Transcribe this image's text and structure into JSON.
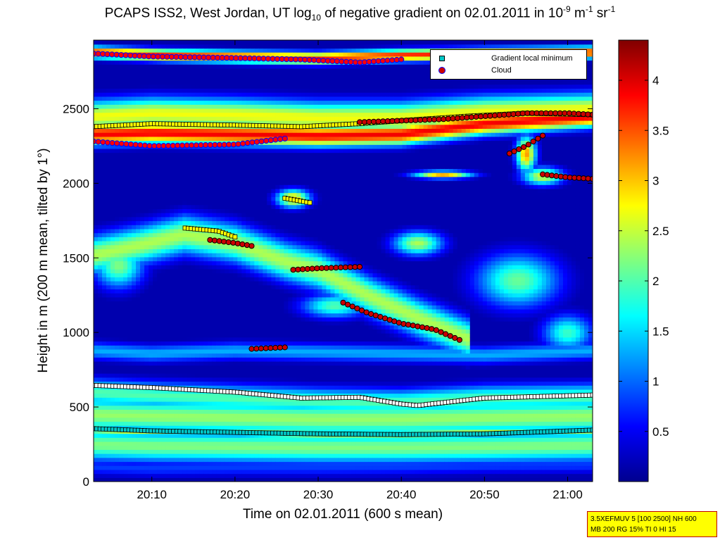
{
  "chart_data": {
    "type": "heatmap",
    "title": {
      "main": "PCAPS ISS2, West Jordan, UT log",
      "sub10": "10",
      "mid": " of negative gradient on 02.01.2011 in 10",
      "exp1": "-9",
      "unit1": " m",
      "exp2": "-1",
      "unit2": " sr",
      "exp3": "-1"
    },
    "xlabel": "Time on 02.01.2011 (600 s mean)",
    "ylabel": "Height in m (200 m mean, tilted by 1°)",
    "xlim_min": [
      3,
      63
    ],
    "x_ticks": [
      {
        "v": 10,
        "label": "20:10"
      },
      {
        "v": 20,
        "label": "20:20"
      },
      {
        "v": 30,
        "label": "20:30"
      },
      {
        "v": 40,
        "label": "20:40"
      },
      {
        "v": 50,
        "label": "20:50"
      },
      {
        "v": 60,
        "label": "21:00"
      }
    ],
    "ylim": [
      0,
      2960
    ],
    "y_ticks": [
      0,
      500,
      1000,
      1500,
      2000,
      2500
    ],
    "colorbar": {
      "range": [
        0,
        4.4
      ],
      "ticks": [
        0.5,
        1,
        1.5,
        2,
        2.5,
        3,
        3.5,
        4
      ],
      "tick_labels": [
        "0.5",
        "1",
        "1.5",
        "2",
        "2.5",
        "3",
        "3.5",
        "4"
      ]
    },
    "legend": {
      "placement": "top-right",
      "items": [
        {
          "label": "Gradient local minimum",
          "color": "#00c8c8"
        },
        {
          "label": "Cloud",
          "color": "#cc0000"
        }
      ]
    },
    "background_value": 0.15,
    "layers": [
      {
        "t": [
          3,
          10,
          20,
          30,
          40,
          50,
          63
        ],
        "h": [
          100,
          90,
          95,
          95,
          100,
          110,
          115
        ],
        "w": 60,
        "v": 0.8
      },
      {
        "t": [
          3,
          10,
          20,
          30,
          40,
          50,
          63
        ],
        "h": [
          250,
          240,
          235,
          230,
          230,
          235,
          245
        ],
        "w": 110,
        "v": 2.2
      },
      {
        "t": [
          3,
          10,
          20,
          30,
          40,
          50,
          63
        ],
        "h": [
          350,
          335,
          330,
          320,
          320,
          330,
          345
        ],
        "w": 25,
        "v": 2.6
      },
      {
        "t": [
          3,
          10,
          20,
          30,
          40,
          50,
          63
        ],
        "h": [
          450,
          440,
          430,
          420,
          420,
          430,
          440
        ],
        "w": 120,
        "v": 2.3
      },
      {
        "t": [
          3,
          10,
          20,
          30,
          40,
          50,
          63
        ],
        "h": [
          600,
          580,
          560,
          540,
          530,
          560,
          570
        ],
        "w": 90,
        "v": 2.0
      },
      {
        "t": [
          3,
          8,
          14,
          20,
          26,
          30,
          36,
          42,
          48
        ],
        "h": [
          1520,
          1580,
          1660,
          1600,
          1480,
          1420,
          1250,
          1100,
          960
        ],
        "w": 130,
        "v": 2.4
      },
      {
        "t": [
          3,
          10,
          20,
          30,
          40,
          50,
          63
        ],
        "h": [
          880,
          860,
          880,
          870,
          860,
          850,
          880
        ],
        "w": 60,
        "v": 1.3
      },
      {
        "t": [
          3,
          10,
          20,
          30,
          40,
          50,
          63
        ],
        "h": [
          2330,
          2340,
          2330,
          2320,
          2330,
          2400,
          2450
        ],
        "w": 70,
        "v": 3.9
      },
      {
        "t": [
          3,
          10,
          20,
          30,
          40,
          50,
          63
        ],
        "h": [
          2450,
          2470,
          2460,
          2440,
          2440,
          2480,
          2500
        ],
        "w": 110,
        "v": 2.7
      },
      {
        "t": [
          3,
          12,
          20,
          30,
          40,
          50,
          63
        ],
        "h": [
          2880,
          2860,
          2850,
          2840,
          2860,
          2870,
          2880
        ],
        "w": 40,
        "v": 3.7
      }
    ],
    "patches": [
      {
        "t": 6,
        "h": 1450,
        "rt": 3,
        "rh": 150,
        "v": 2.2
      },
      {
        "t": 27,
        "h": 1900,
        "rt": 2,
        "rh": 60,
        "v": 3.0
      },
      {
        "t": 45,
        "h": 2060,
        "rt": 3.5,
        "rh": 25,
        "v": 3.1
      },
      {
        "t": 55,
        "h": 2200,
        "rt": 1.2,
        "rh": 120,
        "v": 3.2
      },
      {
        "t": 57,
        "h": 2050,
        "rt": 2.5,
        "rh": 60,
        "v": 2.6
      },
      {
        "t": 54,
        "h": 1350,
        "rt": 5,
        "rh": 180,
        "v": 2.1
      },
      {
        "t": 42,
        "h": 1600,
        "rt": 3,
        "rh": 80,
        "v": 2.4
      },
      {
        "t": 60,
        "h": 1000,
        "rt": 3,
        "rh": 120,
        "v": 1.9
      },
      {
        "t": 32,
        "h": 1180,
        "rt": 4,
        "rh": 80,
        "v": 2.0
      }
    ],
    "series_min": [
      {
        "t": [
          3,
          10,
          20,
          30,
          40,
          50,
          63
        ],
        "h": [
          355,
          340,
          330,
          320,
          315,
          320,
          345
        ],
        "fill": "#00c8c8",
        "edge": "#000000"
      },
      {
        "t": [
          3,
          10,
          20,
          28,
          35,
          40,
          42,
          50,
          63
        ],
        "h": [
          645,
          630,
          600,
          560,
          565,
          520,
          510,
          560,
          580
        ],
        "fill": "#ffffff",
        "edge": "#000000"
      },
      {
        "t": [
          3,
          10,
          20,
          28,
          35,
          40,
          48,
          55,
          63
        ],
        "h": [
          2380,
          2400,
          2390,
          2380,
          2400,
          2420,
          2450,
          2470,
          2460
        ],
        "fill": "#ffff00",
        "edge": "#000000"
      },
      {
        "t": [
          14,
          18,
          20
        ],
        "h": [
          1700,
          1680,
          1640
        ],
        "fill": "#ffff00",
        "edge": "#000000"
      },
      {
        "t": [
          26,
          29
        ],
        "h": [
          1900,
          1870
        ],
        "fill": "#ffff00",
        "edge": "#000000"
      }
    ],
    "series_cloud": [
      {
        "t": [
          3,
          10,
          20,
          26
        ],
        "h": [
          2280,
          2250,
          2260,
          2300
        ],
        "fill": "#ff0000",
        "edge": "#0000ff"
      },
      {
        "t": [
          3,
          10,
          20,
          28,
          35,
          40
        ],
        "h": [
          2870,
          2850,
          2840,
          2830,
          2810,
          2830
        ],
        "fill": "#ff0000",
        "edge": "#0000ff"
      },
      {
        "t": [
          17,
          20,
          22
        ],
        "h": [
          1620,
          1600,
          1580
        ],
        "fill": "#cc0000",
        "edge": "#000000"
      },
      {
        "t": [
          27,
          30,
          35
        ],
        "h": [
          1420,
          1430,
          1440
        ],
        "fill": "#cc0000",
        "edge": "#000000"
      },
      {
        "t": [
          33,
          36,
          40,
          44,
          47
        ],
        "h": [
          1200,
          1130,
          1060,
          1020,
          950
        ],
        "fill": "#cc0000",
        "edge": "#000000"
      },
      {
        "t": [
          22,
          26
        ],
        "h": [
          890,
          900
        ],
        "fill": "#cc0000",
        "edge": "#000000"
      },
      {
        "t": [
          53,
          55,
          57
        ],
        "h": [
          2200,
          2250,
          2320
        ],
        "fill": "#cc0000",
        "edge": "#000000"
      },
      {
        "t": [
          57,
          60,
          63
        ],
        "h": [
          2060,
          2040,
          2030
        ],
        "fill": "#cc0000",
        "edge": "#000000"
      },
      {
        "t": [
          35,
          40,
          45,
          50,
          55,
          60,
          63
        ],
        "h": [
          2410,
          2420,
          2430,
          2450,
          2470,
          2470,
          2460
        ],
        "fill": "#cc0000",
        "edge": "#000000"
      }
    ]
  },
  "info_box": {
    "line1": "3.5XEFMUV 5 [100 2500] NH 600",
    "line2": "MB 200 RG 15% TI 0 HI 15"
  }
}
